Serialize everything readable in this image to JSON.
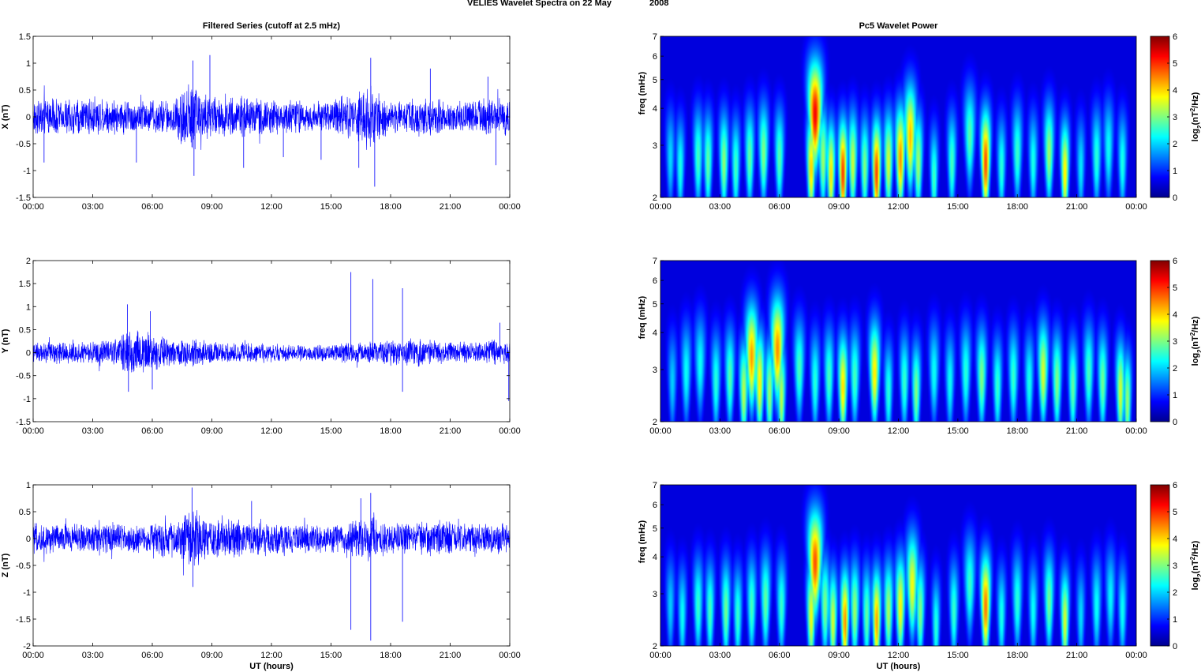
{
  "figure": {
    "suptitle_main": "VELIES Wavelet Spectra on 22 May",
    "suptitle_year": "2008"
  },
  "chart_data": [
    {
      "type": "line",
      "title": "Filtered Series (cutoff at 2.5 mHz)",
      "ylabel": "X (nT)",
      "xlabel": "",
      "xlim": [
        0,
        24
      ],
      "ylim": [
        -1.5,
        1.5
      ],
      "xticks": [
        "00:00",
        "03:00",
        "06:00",
        "09:00",
        "12:00",
        "15:00",
        "18:00",
        "21:00",
        "00:00"
      ],
      "yticks": [
        "-1.5",
        "-1",
        "-0.5",
        "0",
        "0.5",
        "1",
        "1.5"
      ],
      "ytick_values": [
        -1.5,
        -1,
        -0.5,
        0,
        0.5,
        1,
        1.5
      ],
      "color": "#0000ff",
      "noise_envelope": [
        [
          0,
          0.35
        ],
        [
          1,
          0.4
        ],
        [
          2,
          0.35
        ],
        [
          3,
          0.4
        ],
        [
          4,
          0.35
        ],
        [
          5,
          0.35
        ],
        [
          6,
          0.35
        ],
        [
          7,
          0.35
        ],
        [
          7.5,
          0.6
        ],
        [
          8,
          0.8
        ],
        [
          8.5,
          0.6
        ],
        [
          9,
          0.4
        ],
        [
          10,
          0.4
        ],
        [
          11,
          0.4
        ],
        [
          12,
          0.35
        ],
        [
          13,
          0.35
        ],
        [
          14,
          0.3
        ],
        [
          15,
          0.35
        ],
        [
          16,
          0.45
        ],
        [
          16.8,
          0.65
        ],
        [
          17.3,
          0.5
        ],
        [
          18,
          0.3
        ],
        [
          19,
          0.35
        ],
        [
          20,
          0.4
        ],
        [
          21,
          0.3
        ],
        [
          22,
          0.35
        ],
        [
          23,
          0.4
        ],
        [
          24,
          0.35
        ]
      ],
      "spikes": [
        [
          8.05,
          1.05
        ],
        [
          8.1,
          -1.1
        ],
        [
          8.9,
          1.15
        ],
        [
          17.0,
          1.1
        ],
        [
          17.2,
          -1.3
        ],
        [
          16.4,
          -0.95
        ],
        [
          20.0,
          0.9
        ],
        [
          22.9,
          0.75
        ],
        [
          23.3,
          -0.9
        ],
        [
          10.6,
          -0.95
        ],
        [
          5.2,
          -0.85
        ],
        [
          0.55,
          -0.85
        ],
        [
          14.5,
          -0.8
        ],
        [
          12.6,
          -0.75
        ]
      ]
    },
    {
      "type": "line",
      "title": "",
      "ylabel": "Y (nT)",
      "xlabel": "",
      "xlim": [
        0,
        24
      ],
      "ylim": [
        -1.5,
        2
      ],
      "xticks": [
        "00:00",
        "03:00",
        "06:00",
        "09:00",
        "12:00",
        "15:00",
        "18:00",
        "21:00",
        "00:00"
      ],
      "yticks": [
        "-1.5",
        "-1",
        "-0.5",
        "0",
        "0.5",
        "1",
        "1.5",
        "2"
      ],
      "ytick_values": [
        -1.5,
        -1,
        -0.5,
        0,
        0.5,
        1,
        1.5,
        2
      ],
      "color": "#0000ff",
      "noise_envelope": [
        [
          0,
          0.25
        ],
        [
          2,
          0.25
        ],
        [
          4,
          0.3
        ],
        [
          4.8,
          0.55
        ],
        [
          5.5,
          0.5
        ],
        [
          6,
          0.45
        ],
        [
          7,
          0.3
        ],
        [
          8,
          0.35
        ],
        [
          9,
          0.25
        ],
        [
          11,
          0.25
        ],
        [
          13,
          0.2
        ],
        [
          15,
          0.2
        ],
        [
          16,
          0.25
        ],
        [
          17,
          0.25
        ],
        [
          19,
          0.35
        ],
        [
          20,
          0.3
        ],
        [
          22,
          0.25
        ],
        [
          23,
          0.3
        ],
        [
          24,
          0.3
        ]
      ],
      "spikes": [
        [
          16.0,
          1.75
        ],
        [
          17.1,
          1.6
        ],
        [
          18.6,
          1.4
        ],
        [
          4.75,
          1.05
        ],
        [
          5.9,
          0.9
        ],
        [
          4.8,
          -0.85
        ],
        [
          6.0,
          -0.8
        ],
        [
          18.6,
          -0.85
        ],
        [
          23.95,
          -1.05
        ],
        [
          23.5,
          0.65
        ]
      ]
    },
    {
      "type": "line",
      "title": "",
      "ylabel": "Z (nT)",
      "xlabel": "UT (hours)",
      "xlim": [
        0,
        24
      ],
      "ylim": [
        -2,
        1
      ],
      "xticks": [
        "00:00",
        "03:00",
        "06:00",
        "09:00",
        "12:00",
        "15:00",
        "18:00",
        "21:00",
        "00:00"
      ],
      "yticks": [
        "-2",
        "-1.5",
        "-1",
        "-0.5",
        "0",
        "0.5",
        "1"
      ],
      "ytick_values": [
        -2,
        -1.5,
        -1,
        -0.5,
        0,
        0.5,
        1
      ],
      "color": "#0000ff",
      "noise_envelope": [
        [
          0,
          0.3
        ],
        [
          2,
          0.3
        ],
        [
          4,
          0.3
        ],
        [
          6,
          0.3
        ],
        [
          7.5,
          0.45
        ],
        [
          8,
          0.65
        ],
        [
          8.5,
          0.5
        ],
        [
          9,
          0.4
        ],
        [
          11,
          0.35
        ],
        [
          13,
          0.3
        ],
        [
          15,
          0.3
        ],
        [
          16,
          0.35
        ],
        [
          17,
          0.45
        ],
        [
          18,
          0.3
        ],
        [
          20,
          0.35
        ],
        [
          22,
          0.3
        ],
        [
          24,
          0.3
        ]
      ],
      "spikes": [
        [
          8.0,
          0.95
        ],
        [
          8.05,
          -0.9
        ],
        [
          16.0,
          -1.7
        ],
        [
          17.0,
          -1.9
        ],
        [
          18.6,
          -1.55
        ],
        [
          17.0,
          0.85
        ],
        [
          16.5,
          0.75
        ],
        [
          11.0,
          0.7
        ]
      ]
    },
    {
      "type": "heatmap",
      "title": "Pc5 Wavelet Power",
      "ylabel": "freq (mHz)",
      "xlabel": "",
      "xlim": [
        0,
        24
      ],
      "ylim": [
        2,
        7
      ],
      "yscale": "log",
      "yticks": [
        "2",
        "3",
        "4",
        "5",
        "6",
        "7"
      ],
      "ytick_values": [
        2,
        3,
        4,
        5,
        6,
        7
      ],
      "xticks": [
        "00:00",
        "03:00",
        "06:00",
        "09:00",
        "12:00",
        "15:00",
        "18:00",
        "21:00",
        "00:00"
      ],
      "colorbar": {
        "label_base": "log",
        "label_sub": "2",
        "label_rest": "(nT",
        "label_sup": "2",
        "label_end": "/Hz)",
        "range": [
          0,
          6
        ],
        "ticks": [
          "0",
          "1",
          "2",
          "3",
          "4",
          "5",
          "6"
        ]
      },
      "events": [
        [
          0.5,
          2.7,
          1.9
        ],
        [
          1.0,
          2.5,
          2.3
        ],
        [
          1.9,
          2.7,
          2.6
        ],
        [
          2.4,
          2.6,
          2.8
        ],
        [
          3.2,
          2.6,
          3.1
        ],
        [
          3.8,
          2.5,
          2.6
        ],
        [
          4.5,
          2.7,
          2.8
        ],
        [
          5.2,
          2.8,
          3.0
        ],
        [
          6.0,
          2.7,
          2.7
        ],
        [
          7.6,
          2.5,
          4.2
        ],
        [
          7.8,
          3.8,
          5.6
        ],
        [
          8.2,
          2.7,
          3.2
        ],
        [
          8.6,
          2.4,
          4.0
        ],
        [
          9.2,
          2.4,
          5.2
        ],
        [
          9.7,
          2.6,
          3.5
        ],
        [
          10.3,
          2.5,
          3.0
        ],
        [
          10.9,
          2.4,
          5.2
        ],
        [
          11.5,
          2.6,
          3.6
        ],
        [
          12.1,
          2.7,
          4.6
        ],
        [
          12.6,
          3.2,
          4.3
        ],
        [
          13.0,
          2.6,
          3.2
        ],
        [
          13.8,
          2.3,
          2.6
        ],
        [
          14.7,
          2.6,
          2.6
        ],
        [
          15.6,
          3.2,
          2.7
        ],
        [
          16.4,
          2.6,
          5.1
        ],
        [
          17.2,
          2.5,
          2.4
        ],
        [
          18.0,
          2.8,
          2.5
        ],
        [
          18.8,
          2.6,
          2.3
        ],
        [
          19.6,
          2.8,
          3.2
        ],
        [
          20.4,
          2.4,
          4.0
        ],
        [
          21.2,
          2.5,
          2.0
        ],
        [
          22.0,
          2.7,
          2.4
        ],
        [
          22.6,
          2.9,
          2.2
        ],
        [
          23.3,
          2.6,
          2.3
        ]
      ]
    },
    {
      "type": "heatmap",
      "title": "",
      "ylabel": "freq (mHz)",
      "xlabel": "",
      "xlim": [
        0,
        24
      ],
      "ylim": [
        2,
        7
      ],
      "yscale": "log",
      "yticks": [
        "2",
        "3",
        "4",
        "5",
        "6",
        "7"
      ],
      "ytick_values": [
        2,
        3,
        4,
        5,
        6,
        7
      ],
      "xticks": [
        "00:00",
        "03:00",
        "06:00",
        "09:00",
        "12:00",
        "15:00",
        "18:00",
        "21:00",
        "00:00"
      ],
      "colorbar": {
        "label_base": "log",
        "label_sub": "2",
        "label_rest": "(nT",
        "label_sup": "2",
        "label_end": "/Hz)",
        "range": [
          0,
          6
        ],
        "ticks": [
          "0",
          "1",
          "2",
          "3",
          "4",
          "5",
          "6"
        ]
      },
      "events": [
        [
          0.6,
          2.7,
          1.8
        ],
        [
          1.3,
          2.9,
          2.2
        ],
        [
          2.0,
          3.1,
          2.2
        ],
        [
          2.8,
          2.7,
          2.4
        ],
        [
          3.5,
          2.8,
          2.7
        ],
        [
          4.2,
          2.5,
          3.4
        ],
        [
          4.6,
          3.3,
          4.5
        ],
        [
          5.0,
          2.7,
          3.9
        ],
        [
          5.5,
          2.5,
          3.2
        ],
        [
          5.9,
          3.5,
          4.6
        ],
        [
          6.1,
          2.4,
          3.4
        ],
        [
          7.0,
          3.0,
          2.6
        ],
        [
          7.8,
          2.7,
          2.4
        ],
        [
          8.5,
          2.8,
          2.6
        ],
        [
          9.2,
          2.6,
          4.1
        ],
        [
          9.8,
          2.8,
          2.6
        ],
        [
          10.8,
          2.9,
          4.0
        ],
        [
          11.5,
          2.5,
          2.4
        ],
        [
          12.3,
          2.7,
          2.5
        ],
        [
          12.9,
          2.5,
          3.0
        ],
        [
          13.8,
          2.9,
          2.2
        ],
        [
          14.6,
          2.7,
          2.2
        ],
        [
          15.4,
          2.9,
          2.4
        ],
        [
          16.2,
          2.8,
          3.0
        ],
        [
          17.0,
          2.6,
          2.5
        ],
        [
          17.8,
          2.8,
          2.5
        ],
        [
          18.6,
          2.7,
          2.3
        ],
        [
          19.3,
          2.9,
          3.6
        ],
        [
          20.0,
          2.7,
          3.0
        ],
        [
          20.8,
          2.6,
          2.8
        ],
        [
          21.6,
          2.9,
          2.6
        ],
        [
          22.3,
          2.7,
          2.9
        ],
        [
          23.2,
          2.5,
          3.6
        ],
        [
          23.55,
          2.3,
          3.2
        ]
      ]
    },
    {
      "type": "heatmap",
      "title": "",
      "ylabel": "freq (mHz)",
      "xlabel": "UT (hours)",
      "xlim": [
        0,
        24
      ],
      "ylim": [
        2,
        7
      ],
      "yscale": "log",
      "yticks": [
        "2",
        "3",
        "4",
        "5",
        "6",
        "7"
      ],
      "ytick_values": [
        2,
        3,
        4,
        5,
        6,
        7
      ],
      "xticks": [
        "00:00",
        "03:00",
        "06:00",
        "09:00",
        "12:00",
        "15:00",
        "18:00",
        "21:00",
        "00:00"
      ],
      "colorbar": {
        "label_base": "log",
        "label_sub": "2",
        "label_rest": "(nT",
        "label_sup": "2",
        "label_end": "/Hz)",
        "range": [
          0,
          6
        ],
        "ticks": [
          "0",
          "1",
          "2",
          "3",
          "4",
          "5",
          "6"
        ]
      },
      "events": [
        [
          0.5,
          2.7,
          1.8
        ],
        [
          1.1,
          2.5,
          2.2
        ],
        [
          1.9,
          2.7,
          2.5
        ],
        [
          2.5,
          2.6,
          2.6
        ],
        [
          3.3,
          2.6,
          2.9
        ],
        [
          3.9,
          2.5,
          2.5
        ],
        [
          4.6,
          2.7,
          2.6
        ],
        [
          5.3,
          2.8,
          2.8
        ],
        [
          6.1,
          2.7,
          2.5
        ],
        [
          7.6,
          2.5,
          3.8
        ],
        [
          7.8,
          3.8,
          5.0
        ],
        [
          8.3,
          2.7,
          3.0
        ],
        [
          8.7,
          2.4,
          3.6
        ],
        [
          9.3,
          2.4,
          4.6
        ],
        [
          9.8,
          2.6,
          3.2
        ],
        [
          10.4,
          2.5,
          2.8
        ],
        [
          10.9,
          2.4,
          4.5
        ],
        [
          11.5,
          2.6,
          3.3
        ],
        [
          12.1,
          2.7,
          3.9
        ],
        [
          12.7,
          3.2,
          3.8
        ],
        [
          13.1,
          2.6,
          3.0
        ],
        [
          13.9,
          2.3,
          2.4
        ],
        [
          14.8,
          2.6,
          2.5
        ],
        [
          15.6,
          3.2,
          2.5
        ],
        [
          16.4,
          2.7,
          4.8
        ],
        [
          17.2,
          2.5,
          2.3
        ],
        [
          18.0,
          2.8,
          2.4
        ],
        [
          18.8,
          2.6,
          2.2
        ],
        [
          19.6,
          2.8,
          2.9
        ],
        [
          20.4,
          2.4,
          3.6
        ],
        [
          21.2,
          2.5,
          1.9
        ],
        [
          22.0,
          2.7,
          2.2
        ],
        [
          22.7,
          2.9,
          2.1
        ],
        [
          23.3,
          2.6,
          2.2
        ]
      ]
    }
  ]
}
